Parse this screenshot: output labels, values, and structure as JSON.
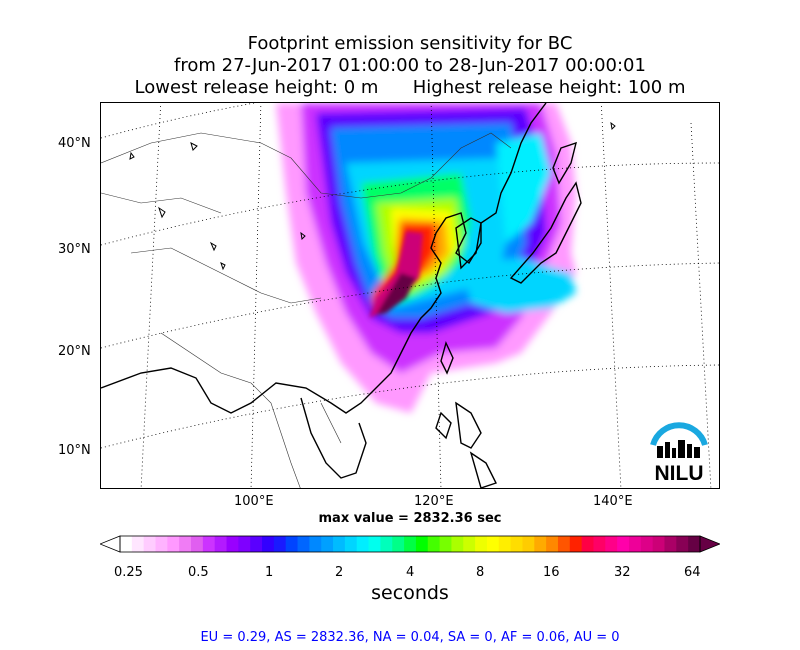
{
  "title": {
    "line1": "Footprint emission sensitivity for BC",
    "line2": "from 27-Jun-2017 01:00:00 to 28-Jun-2017 00:00:01",
    "line3": "Lowest release height: 0 m      Highest release height: 100 m"
  },
  "map": {
    "lat_labels": [
      "40°N",
      "30°N",
      "20°N",
      "10°N"
    ],
    "lon_labels": [
      "100°E",
      "120°E",
      "140°E"
    ],
    "max_value_text": "max value = 2832.36 sec",
    "logo_text": "NILU"
  },
  "colorbar": {
    "ticks": [
      "0.25",
      "0.5",
      "1",
      "2",
      "4",
      "8",
      "16",
      "32",
      "64"
    ],
    "units": "seconds",
    "colors": [
      "#ffffff",
      "#ffe6ff",
      "#ffccff",
      "#ffb3ff",
      "#ff99ff",
      "#f07cf5",
      "#e05ef0",
      "#cc33ff",
      "#b31aff",
      "#9900ff",
      "#7f00ff",
      "#5a00ff",
      "#3300ff",
      "#1a1aff",
      "#0044ff",
      "#0066ff",
      "#0088ff",
      "#00a0ff",
      "#00bbff",
      "#00d5ff",
      "#00eeff",
      "#00ffee",
      "#00ffbb",
      "#00ff88",
      "#00ff44",
      "#00ff00",
      "#44ff00",
      "#77ff00",
      "#aaff00",
      "#ccff00",
      "#eeff00",
      "#ffff00",
      "#ffee00",
      "#ffdd00",
      "#ffcc00",
      "#ffaa00",
      "#ff8800",
      "#ff5500",
      "#ff2200",
      "#ff0044",
      "#ff0066",
      "#ff0088",
      "#ff00aa",
      "#ee0099",
      "#dd0088",
      "#cc0077",
      "#aa0066",
      "#880055",
      "#660044"
    ]
  },
  "region_stats": "EU = 0.29,  AS = 2832.36,  NA = 0.04,  SA = 0,  AF = 0.06,  AU = 0"
}
